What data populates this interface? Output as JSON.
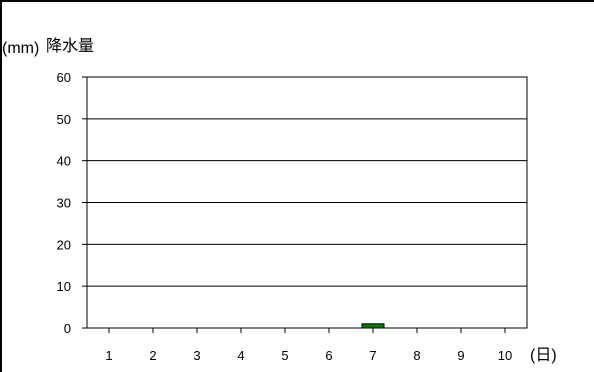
{
  "chart_data": {
    "type": "bar",
    "ylabel_unit": "(mm)",
    "ylabel": "降水量",
    "xlabel": "(日)",
    "categories": [
      "1",
      "2",
      "3",
      "4",
      "5",
      "6",
      "7",
      "8",
      "9",
      "10"
    ],
    "values": [
      0,
      0,
      0,
      0,
      0,
      0,
      1,
      0,
      0,
      0
    ],
    "ylim": [
      0,
      60
    ],
    "yticks": [
      0,
      10,
      20,
      30,
      40,
      50,
      60
    ],
    "grid": true,
    "colors": {
      "bar": "#008000",
      "grid": "#000000"
    }
  }
}
